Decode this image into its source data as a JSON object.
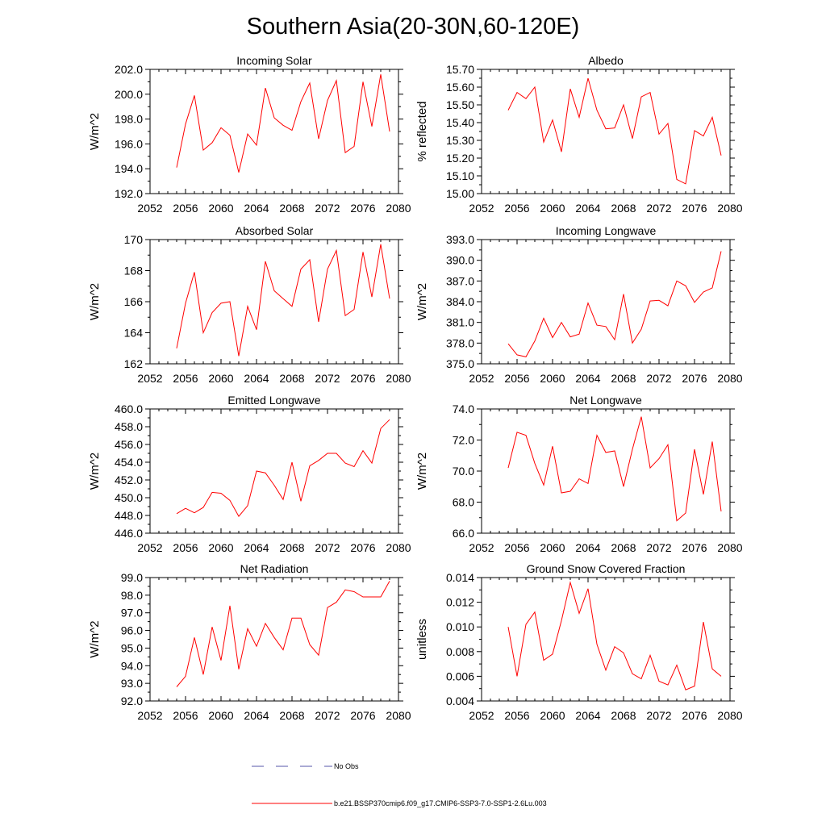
{
  "title": "Southern Asia(20-30N,60-120E)",
  "legend": {
    "entries": [
      {
        "label": "No Obs",
        "color": "#5555aa",
        "dash": true
      },
      {
        "label": "b.e21.BSSP370cmip6.f09_g17.CMIP6-SSP3-7.0-SSP1-2.6Lu.003",
        "color": "#ff0000",
        "dash": false
      }
    ]
  },
  "line_color": "#ff0000",
  "chart_data": [
    {
      "type": "line",
      "title": "Incoming Solar",
      "ylabel": "W/m^2",
      "xlim": [
        2052,
        2080
      ],
      "ylim": [
        192,
        202
      ],
      "xticks": [
        2052,
        2056,
        2060,
        2064,
        2068,
        2072,
        2076,
        2080
      ],
      "xtick_labels": [
        "2052",
        "2056",
        "2060",
        "2064",
        "2068",
        "2072",
        "2076",
        "2080"
      ],
      "yticks": [
        192,
        194,
        196,
        198,
        200,
        202
      ],
      "ytick_labels": [
        "192.0",
        "194.0",
        "196.0",
        "198.0",
        "200.0",
        "202.0"
      ],
      "x": [
        2055,
        2056,
        2057,
        2058,
        2059,
        2060,
        2061,
        2062,
        2063,
        2064,
        2065,
        2066,
        2067,
        2068,
        2069,
        2070,
        2071,
        2072,
        2073,
        2074,
        2075,
        2076,
        2077,
        2078,
        2079
      ],
      "series": [
        {
          "values": [
            194.1,
            197.6,
            199.9,
            195.5,
            196.1,
            197.3,
            196.7,
            193.7,
            196.8,
            195.9,
            200.5,
            198.1,
            197.5,
            197.1,
            199.4,
            200.9,
            196.4,
            199.5,
            201.1,
            195.3,
            195.8,
            201.0,
            197.4,
            201.6,
            197.0
          ]
        }
      ]
    },
    {
      "type": "line",
      "title": "Albedo",
      "ylabel": "% reflected",
      "xlim": [
        2052,
        2080
      ],
      "ylim": [
        15.0,
        15.7
      ],
      "xticks": [
        2052,
        2056,
        2060,
        2064,
        2068,
        2072,
        2076,
        2080
      ],
      "xtick_labels": [
        "2052",
        "2056",
        "2060",
        "2064",
        "2068",
        "2072",
        "2076",
        "2080"
      ],
      "yticks": [
        15.0,
        15.1,
        15.2,
        15.3,
        15.4,
        15.5,
        15.6,
        15.7
      ],
      "ytick_labels": [
        "15.00",
        "15.10",
        "15.20",
        "15.30",
        "15.40",
        "15.50",
        "15.60",
        "15.70"
      ],
      "x": [
        2055,
        2056,
        2057,
        2058,
        2059,
        2060,
        2061,
        2062,
        2063,
        2064,
        2065,
        2066,
        2067,
        2068,
        2069,
        2070,
        2071,
        2072,
        2073,
        2074,
        2075,
        2076,
        2077,
        2078,
        2079
      ],
      "series": [
        {
          "values": [
            15.47,
            15.57,
            15.535,
            15.6,
            15.29,
            15.415,
            15.235,
            15.59,
            15.43,
            15.65,
            15.47,
            15.365,
            15.37,
            15.5,
            15.31,
            15.545,
            15.57,
            15.335,
            15.395,
            15.08,
            15.055,
            15.355,
            15.325,
            15.43,
            15.215
          ]
        }
      ]
    },
    {
      "type": "line",
      "title": "Absorbed Solar",
      "ylabel": "W/m^2",
      "xlim": [
        2052,
        2080
      ],
      "ylim": [
        162,
        170
      ],
      "xticks": [
        2052,
        2056,
        2060,
        2064,
        2068,
        2072,
        2076,
        2080
      ],
      "xtick_labels": [
        "2052",
        "2056",
        "2060",
        "2064",
        "2068",
        "2072",
        "2076",
        "2080"
      ],
      "yticks": [
        162,
        164,
        166,
        168,
        170
      ],
      "ytick_labels": [
        "162",
        "164",
        "166",
        "168",
        "170"
      ],
      "x": [
        2055,
        2056,
        2057,
        2058,
        2059,
        2060,
        2061,
        2062,
        2063,
        2064,
        2065,
        2066,
        2067,
        2068,
        2069,
        2070,
        2071,
        2072,
        2073,
        2074,
        2075,
        2076,
        2077,
        2078,
        2079
      ],
      "series": [
        {
          "values": [
            163.0,
            165.9,
            167.9,
            164.0,
            165.3,
            165.9,
            166.0,
            162.5,
            165.7,
            164.2,
            168.6,
            166.7,
            166.2,
            165.7,
            168.1,
            168.7,
            164.7,
            168.1,
            169.3,
            165.1,
            165.5,
            169.2,
            166.3,
            169.7,
            166.2
          ]
        }
      ]
    },
    {
      "type": "line",
      "title": "Incoming Longwave",
      "ylabel": "W/m^2",
      "xlim": [
        2052,
        2080
      ],
      "ylim": [
        375,
        393
      ],
      "xticks": [
        2052,
        2056,
        2060,
        2064,
        2068,
        2072,
        2076,
        2080
      ],
      "xtick_labels": [
        "2052",
        "2056",
        "2060",
        "2064",
        "2068",
        "2072",
        "2076",
        "2080"
      ],
      "yticks": [
        375,
        378,
        381,
        384,
        387,
        390,
        393
      ],
      "ytick_labels": [
        "375.0",
        "378.0",
        "381.0",
        "384.0",
        "387.0",
        "390.0",
        "393.0"
      ],
      "x": [
        2055,
        2056,
        2057,
        2058,
        2059,
        2060,
        2061,
        2062,
        2063,
        2064,
        2065,
        2066,
        2067,
        2068,
        2069,
        2070,
        2071,
        2072,
        2073,
        2074,
        2075,
        2076,
        2077,
        2078,
        2079
      ],
      "series": [
        {
          "values": [
            377.9,
            376.3,
            376.0,
            378.3,
            381.6,
            378.8,
            381.0,
            378.9,
            379.3,
            383.8,
            380.6,
            380.4,
            378.5,
            385.1,
            378.0,
            380.0,
            384.1,
            384.2,
            383.4,
            387.0,
            386.3,
            383.9,
            385.4,
            386.0,
            391.3
          ]
        }
      ]
    },
    {
      "type": "line",
      "title": "Emitted Longwave",
      "ylabel": "W/m^2",
      "xlim": [
        2052,
        2080
      ],
      "ylim": [
        446,
        460
      ],
      "xticks": [
        2052,
        2056,
        2060,
        2064,
        2068,
        2072,
        2076,
        2080
      ],
      "xtick_labels": [
        "2052",
        "2056",
        "2060",
        "2064",
        "2068",
        "2072",
        "2076",
        "2080"
      ],
      "yticks": [
        446,
        448,
        450,
        452,
        454,
        456,
        458,
        460
      ],
      "ytick_labels": [
        "446.0",
        "448.0",
        "450.0",
        "452.0",
        "454.0",
        "456.0",
        "458.0",
        "460.0"
      ],
      "x": [
        2055,
        2056,
        2057,
        2058,
        2059,
        2060,
        2061,
        2062,
        2063,
        2064,
        2065,
        2066,
        2067,
        2068,
        2069,
        2070,
        2071,
        2072,
        2073,
        2074,
        2075,
        2076,
        2077,
        2078,
        2079
      ],
      "series": [
        {
          "values": [
            448.2,
            448.8,
            448.3,
            448.9,
            450.6,
            450.5,
            449.7,
            447.9,
            449.1,
            453.0,
            452.8,
            451.4,
            449.8,
            454.0,
            449.6,
            453.6,
            454.2,
            455.0,
            455.0,
            453.9,
            453.5,
            455.3,
            453.9,
            457.8,
            458.8
          ]
        }
      ]
    },
    {
      "type": "line",
      "title": "Net Longwave",
      "ylabel": "W/m^2",
      "xlim": [
        2052,
        2080
      ],
      "ylim": [
        66,
        74
      ],
      "xticks": [
        2052,
        2056,
        2060,
        2064,
        2068,
        2072,
        2076,
        2080
      ],
      "xtick_labels": [
        "2052",
        "2056",
        "2060",
        "2064",
        "2068",
        "2072",
        "2076",
        "2080"
      ],
      "yticks": [
        66,
        68,
        70,
        72,
        74
      ],
      "ytick_labels": [
        "66.0",
        "68.0",
        "70.0",
        "72.0",
        "74.0"
      ],
      "x": [
        2055,
        2056,
        2057,
        2058,
        2059,
        2060,
        2061,
        2062,
        2063,
        2064,
        2065,
        2066,
        2067,
        2068,
        2069,
        2070,
        2071,
        2072,
        2073,
        2074,
        2075,
        2076,
        2077,
        2078,
        2079
      ],
      "series": [
        {
          "values": [
            70.2,
            72.5,
            72.3,
            70.5,
            69.1,
            71.6,
            68.6,
            68.7,
            69.5,
            69.2,
            72.3,
            71.2,
            71.3,
            69.0,
            71.4,
            73.5,
            70.2,
            70.8,
            71.7,
            66.8,
            67.3,
            71.4,
            68.5,
            71.9,
            67.4
          ]
        }
      ]
    },
    {
      "type": "line",
      "title": "Net Radiation",
      "ylabel": "W/m^2",
      "xlim": [
        2052,
        2080
      ],
      "ylim": [
        92,
        99
      ],
      "xticks": [
        2052,
        2056,
        2060,
        2064,
        2068,
        2072,
        2076,
        2080
      ],
      "xtick_labels": [
        "2052",
        "2056",
        "2060",
        "2064",
        "2068",
        "2072",
        "2076",
        "2080"
      ],
      "yticks": [
        92,
        93,
        94,
        95,
        96,
        97,
        98,
        99
      ],
      "ytick_labels": [
        "92.0",
        "93.0",
        "94.0",
        "95.0",
        "96.0",
        "97.0",
        "98.0",
        "99.0"
      ],
      "x": [
        2055,
        2056,
        2057,
        2058,
        2059,
        2060,
        2061,
        2062,
        2063,
        2064,
        2065,
        2066,
        2067,
        2068,
        2069,
        2070,
        2071,
        2072,
        2073,
        2074,
        2075,
        2076,
        2077,
        2078,
        2079
      ],
      "series": [
        {
          "values": [
            92.8,
            93.4,
            95.6,
            93.5,
            96.2,
            94.3,
            97.4,
            93.8,
            96.1,
            95.1,
            96.4,
            95.6,
            94.9,
            96.7,
            96.7,
            95.2,
            94.6,
            97.3,
            97.6,
            98.3,
            98.2,
            97.9,
            97.9,
            97.9,
            98.8
          ]
        }
      ]
    },
    {
      "type": "line",
      "title": "Ground Snow Covered Fraction",
      "ylabel": "unitless",
      "xlim": [
        2052,
        2080
      ],
      "ylim": [
        0.004,
        0.014
      ],
      "xticks": [
        2052,
        2056,
        2060,
        2064,
        2068,
        2072,
        2076,
        2080
      ],
      "xtick_labels": [
        "2052",
        "2056",
        "2060",
        "2064",
        "2068",
        "2072",
        "2076",
        "2080"
      ],
      "yticks": [
        0.004,
        0.006,
        0.008,
        0.01,
        0.012,
        0.014
      ],
      "ytick_labels": [
        "0.004",
        "0.006",
        "0.008",
        "0.010",
        "0.012",
        "0.014"
      ],
      "x": [
        2055,
        2056,
        2057,
        2058,
        2059,
        2060,
        2061,
        2062,
        2063,
        2064,
        2065,
        2066,
        2067,
        2068,
        2069,
        2070,
        2071,
        2072,
        2073,
        2074,
        2075,
        2076,
        2077,
        2078,
        2079
      ],
      "series": [
        {
          "values": [
            0.01,
            0.006,
            0.0102,
            0.0112,
            0.0073,
            0.0078,
            0.0105,
            0.0136,
            0.0111,
            0.0131,
            0.0086,
            0.0065,
            0.0084,
            0.0079,
            0.0062,
            0.0058,
            0.0077,
            0.0056,
            0.0053,
            0.0069,
            0.0049,
            0.0052,
            0.0104,
            0.0066,
            0.006
          ]
        }
      ]
    }
  ]
}
